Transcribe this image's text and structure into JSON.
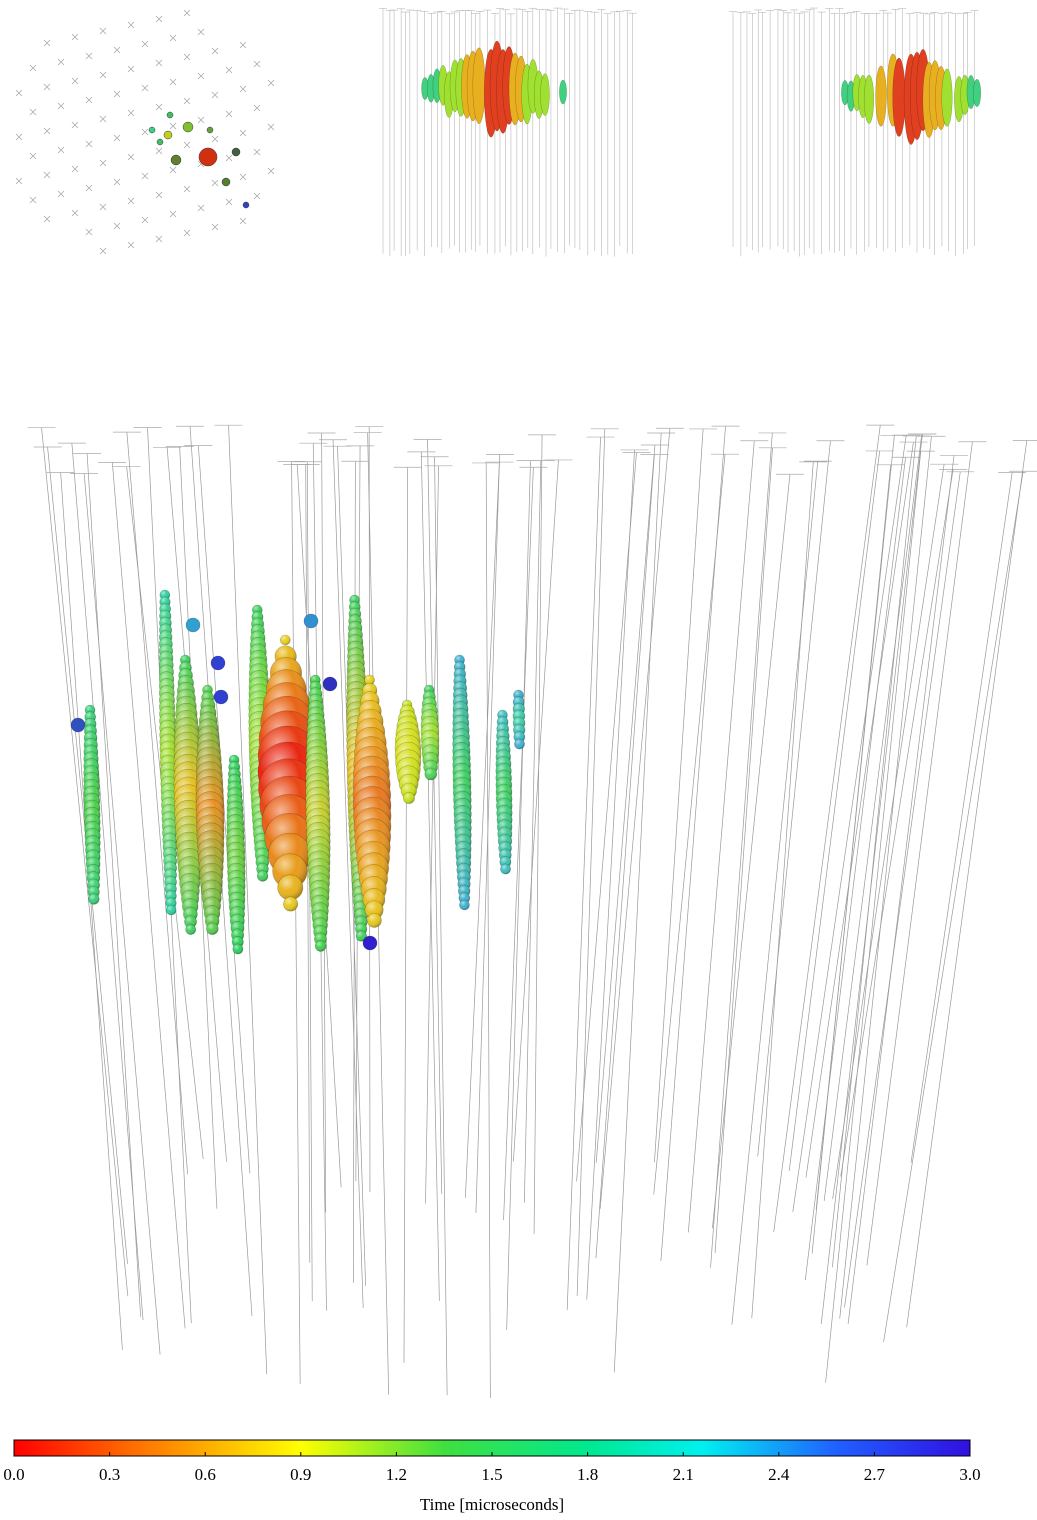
{
  "chart_data": {
    "type": "colorbar",
    "xlabel": "Time [microseconds]",
    "xlim": [
      0,
      3
    ],
    "xticks": [
      {
        "value": 0,
        "label": "0.0"
      },
      0.3,
      0.6,
      0.9,
      1.2,
      1.5,
      1.8,
      2.1,
      2.4,
      2.7,
      {
        "value": 3,
        "label": "3.0"
      }
    ]
  }
}
